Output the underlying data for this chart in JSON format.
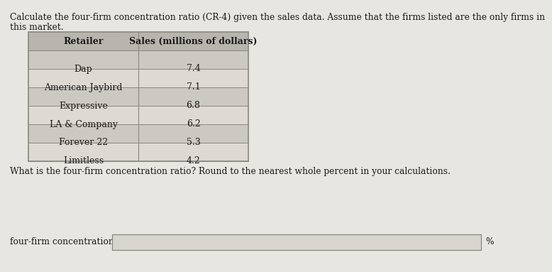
{
  "title_line1": "Calculate the four-firm concentration ratio (CR-4) given the sales data. Assume that the firms listed are the only firms in",
  "title_line2": "this market.",
  "col1_header": "Retailer",
  "col2_header": "Sales (millions of dollars)",
  "retailers": [
    "Dap",
    "American Jaybird",
    "Expressive",
    "LA & Company",
    "Forever 22",
    "Limitless"
  ],
  "sales": [
    "7.4",
    "7.1",
    "6.8",
    "6.2",
    "5.3",
    "4.2"
  ],
  "question_text": "What is the four-firm concentration ratio? Round to the nearest whole percent in your calculations.",
  "answer_label": "four-firm concentration ratio:",
  "percent_symbol": "%",
  "bg_color": "#e8e6e0",
  "row_color_odd": "#dedad3",
  "row_color_even": "#ccc9c2",
  "header_color": "#b8b5ae",
  "input_box_color": "#d8d5ce",
  "text_color": "#1a1a1a",
  "border_color": "#888880",
  "font_size_title": 8.8,
  "font_size_table": 9.0,
  "font_size_question": 8.8,
  "font_size_answer": 8.8
}
